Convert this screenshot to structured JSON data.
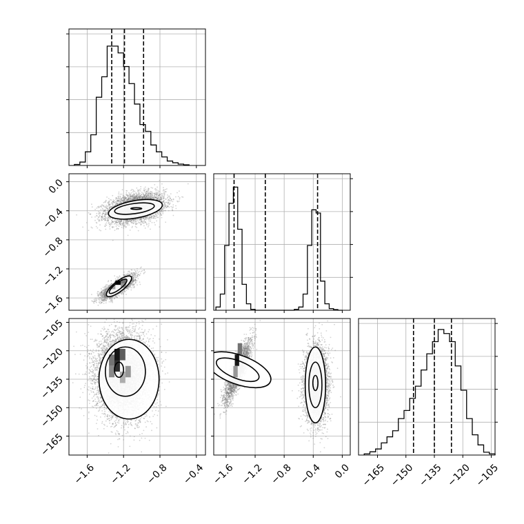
{
  "chart_data": {
    "type": "corner",
    "grid": true,
    "colors": {
      "ink": "#000000",
      "grid": "#b0b0b0",
      "scatter": "#7f7f7f"
    },
    "params": [
      {
        "id": "p0",
        "range": [
          -1.8,
          -0.3
        ],
        "ticks": [
          -1.6,
          -1.2,
          -0.8,
          -0.4
        ],
        "tick_labels": [
          "−1.6",
          "−1.2",
          "−0.8",
          "−0.4"
        ],
        "quantiles": [
          -1.33,
          -1.19,
          -0.98
        ]
      },
      {
        "id": "p1",
        "range": [
          -1.77,
          0.11
        ],
        "ticks": [
          -1.6,
          -1.2,
          -0.8,
          -0.4,
          0.0
        ],
        "tick_labels": [
          "−1.6",
          "−1.2",
          "−0.8",
          "−0.4",
          "0.0"
        ],
        "quantiles": [
          -1.49,
          -1.06,
          -0.34
        ]
      },
      {
        "id": "p2",
        "range": [
          -175,
          -103
        ],
        "ticks": [
          -165,
          -150,
          -135,
          -120,
          -105
        ],
        "tick_labels": [
          "−165",
          "−150",
          "−135",
          "−120",
          "−105"
        ],
        "quantiles": [
          -146,
          -135,
          -126
        ]
      }
    ],
    "histograms": [
      {
        "param": "p0",
        "max": 0.38,
        "edges": [
          -1.74,
          -1.68,
          -1.62,
          -1.56,
          -1.5,
          -1.44,
          -1.38,
          -1.32,
          -1.26,
          -1.2,
          -1.14,
          -1.08,
          -1.02,
          -0.96,
          -0.9,
          -0.84,
          -0.78,
          -0.72,
          -0.66,
          -0.6,
          -0.54,
          -0.48
        ],
        "counts": [
          0.003,
          0.01,
          0.04,
          0.09,
          0.2,
          0.26,
          0.35,
          0.35,
          0.33,
          0.29,
          0.24,
          0.18,
          0.12,
          0.1,
          0.06,
          0.04,
          0.025,
          0.013,
          0.008,
          0.004,
          0.002
        ]
      },
      {
        "param": "p1",
        "max": 0.4,
        "edges": [
          -1.74,
          -1.68,
          -1.62,
          -1.56,
          -1.5,
          -1.44,
          -1.38,
          -1.32,
          -1.26,
          -1.2,
          -1.14,
          -1.08,
          -1.02,
          -0.96,
          -0.9,
          -0.84,
          -0.78,
          -0.72,
          -0.66,
          -0.6,
          -0.54,
          -0.48,
          -0.42,
          -0.36,
          -0.3,
          -0.24,
          -0.18,
          -0.12,
          -0.06,
          0.0
        ],
        "counts": [
          0.01,
          0.05,
          0.2,
          0.33,
          0.38,
          0.25,
          0.08,
          0.02,
          0.003,
          0,
          0,
          0,
          0,
          0,
          0,
          0,
          0,
          0,
          0.003,
          0.01,
          0.05,
          0.2,
          0.31,
          0.3,
          0.09,
          0.02,
          0.005,
          0.002,
          0
        ]
      },
      {
        "param": "p2",
        "max": 0.32,
        "edges": [
          -172,
          -169,
          -166,
          -163,
          -160,
          -157,
          -154,
          -151,
          -148,
          -145,
          -142,
          -139,
          -136,
          -133,
          -130,
          -127,
          -124,
          -121,
          -118,
          -115,
          -112,
          -109,
          -106,
          -103
        ],
        "counts": [
          0.003,
          0.008,
          0.015,
          0.03,
          0.045,
          0.06,
          0.09,
          0.11,
          0.14,
          0.17,
          0.21,
          0.25,
          0.28,
          0.31,
          0.3,
          0.28,
          0.22,
          0.16,
          0.09,
          0.05,
          0.025,
          0.007,
          0.003
        ]
      }
    ],
    "scatter_panels": [
      {
        "x": "p0",
        "y": "p1",
        "clusters": [
          {
            "cx": -1.07,
            "cy": -0.36,
            "sx": 0.16,
            "sy": 0.1,
            "rho": 0.35,
            "n": 4200
          },
          {
            "cx": -1.26,
            "cy": -1.45,
            "sx": 0.09,
            "sy": 0.08,
            "rho": 0.8,
            "n": 2600
          }
        ],
        "contours": [
          {
            "cx": -1.07,
            "cy": -0.38,
            "rx": 0.3,
            "ry": 0.12,
            "angle": 10
          },
          {
            "cx": -1.08,
            "cy": -0.37,
            "rx": 0.22,
            "ry": 0.07,
            "angle": 8
          },
          {
            "cx": -1.06,
            "cy": -0.37,
            "rx": 0.06,
            "ry": 0.012,
            "angle": 0
          },
          {
            "cx": -1.25,
            "cy": -1.44,
            "rx": 0.17,
            "ry": 0.07,
            "angle": 38
          },
          {
            "cx": -1.26,
            "cy": -1.44,
            "rx": 0.12,
            "ry": 0.045,
            "angle": 38
          }
        ],
        "dense_cells": [
          {
            "x": -1.29,
            "y": -1.42,
            "w": 0.06,
            "h": 0.06,
            "level": 1.0
          },
          {
            "x": -1.23,
            "y": -1.4,
            "w": 0.06,
            "h": 0.06,
            "level": 0.5
          },
          {
            "x": -1.35,
            "y": -1.48,
            "w": 0.06,
            "h": 0.06,
            "level": 0.3
          },
          {
            "x": -1.23,
            "y": -1.46,
            "w": 0.06,
            "h": 0.06,
            "level": 0.35
          }
        ]
      },
      {
        "x": "p0",
        "y": "p2",
        "clusters": [
          {
            "cx": -1.2,
            "cy": -133,
            "sx": 0.15,
            "sy": 11,
            "rho": 0.0,
            "n": 7000
          }
        ],
        "contours": [
          {
            "cx": -1.14,
            "cy": -135,
            "rx": 0.33,
            "ry": 21,
            "angle": 0
          },
          {
            "cx": -1.18,
            "cy": -131,
            "rx": 0.22,
            "ry": 13,
            "angle": 0
          },
          {
            "cx": -1.25,
            "cy": -130,
            "rx": 0.05,
            "ry": 4,
            "angle": 0
          }
        ],
        "dense_cells": [
          {
            "x": -1.36,
            "y": -128,
            "w": 0.06,
            "h": 6,
            "level": 0.5
          },
          {
            "x": -1.3,
            "y": -125,
            "w": 0.06,
            "h": 6,
            "level": 0.9
          },
          {
            "x": -1.24,
            "y": -125,
            "w": 0.06,
            "h": 6,
            "level": 0.6
          },
          {
            "x": -1.3,
            "y": -131,
            "w": 0.06,
            "h": 6,
            "level": 0.8
          },
          {
            "x": -1.18,
            "y": -134,
            "w": 0.06,
            "h": 6,
            "level": 0.35
          },
          {
            "x": -1.36,
            "y": -134,
            "w": 0.06,
            "h": 6,
            "level": 0.4
          },
          {
            "x": -1.24,
            "y": -137,
            "w": 0.06,
            "h": 6,
            "level": 0.25
          }
        ]
      },
      {
        "x": "p1",
        "y": "p2",
        "clusters": [
          {
            "cx": -1.44,
            "cy": -131,
            "sx": 0.09,
            "sy": 8,
            "rho": 0.85,
            "n": 2600
          },
          {
            "cx": -0.36,
            "cy": -138,
            "sx": 0.08,
            "sy": 10,
            "rho": 0.0,
            "n": 4200
          }
        ],
        "contours": [
          {
            "cx": -1.43,
            "cy": -130,
            "rx": 0.2,
            "ry": 18,
            "angle": 70
          },
          {
            "cx": -1.44,
            "cy": -130,
            "rx": 0.12,
            "ry": 12,
            "angle": 68
          },
          {
            "cx": -0.37,
            "cy": -138,
            "rx": 0.14,
            "ry": 20,
            "angle": 0
          },
          {
            "cx": -0.37,
            "cy": -138,
            "rx": 0.09,
            "ry": 12,
            "angle": 0
          },
          {
            "cx": -0.37,
            "cy": -137,
            "rx": 0.035,
            "ry": 4,
            "angle": 0
          }
        ],
        "dense_cells": [
          {
            "x": -1.48,
            "y": -128,
            "w": 0.06,
            "h": 6,
            "level": 0.9
          },
          {
            "x": -1.44,
            "y": -122,
            "w": 0.06,
            "h": 6,
            "level": 0.5
          },
          {
            "x": -1.5,
            "y": -134,
            "w": 0.06,
            "h": 6,
            "level": 0.35
          }
        ]
      }
    ]
  }
}
